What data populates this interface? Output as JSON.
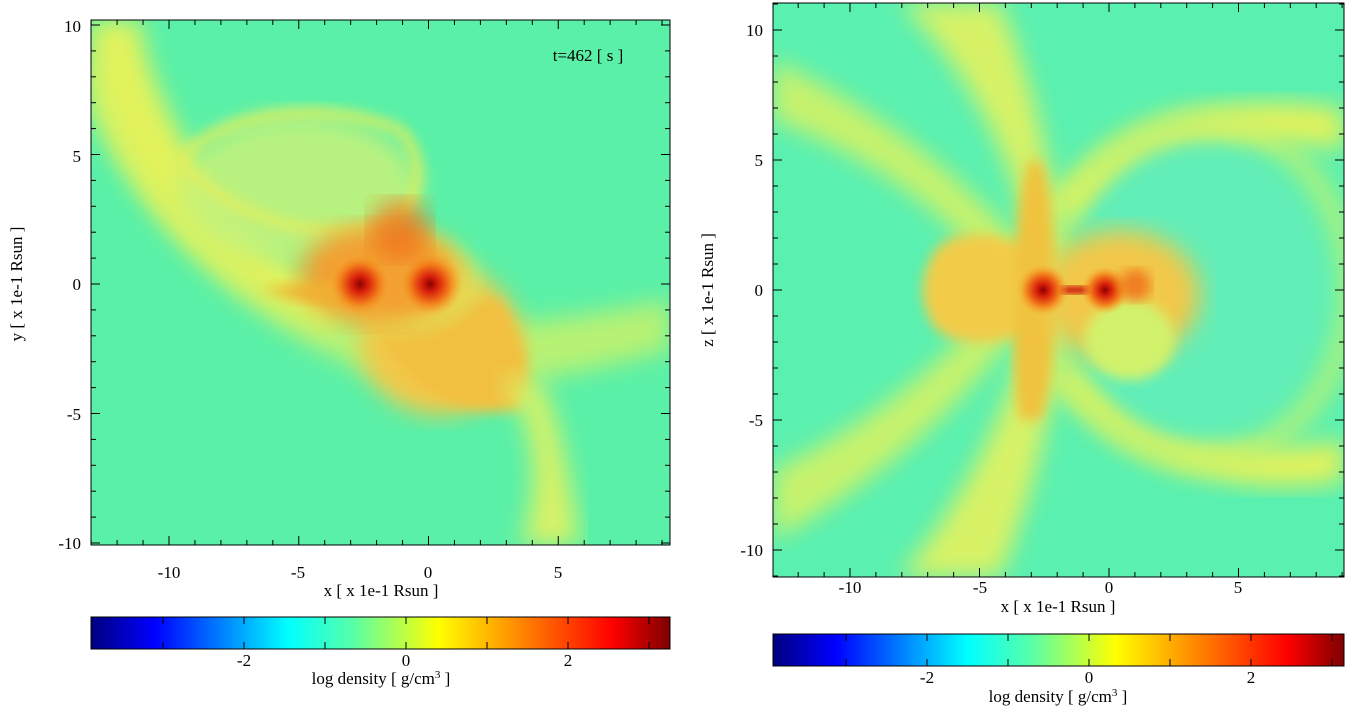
{
  "figure": {
    "left_panel": {
      "timestamp": "t=462 [ s ]",
      "xlabel": "x [ x 1e-1 Rsun ]",
      "ylabel": "y [ x 1e-1 Rsun ]",
      "x_ticks": [
        "-10",
        "-5",
        "0",
        "5"
      ],
      "y_ticks": [
        "10",
        "5",
        "0",
        "-5",
        "-10"
      ],
      "colorbar": {
        "label": "log density [ g/cm",
        "label_sup": "3",
        "label_tail": " ]",
        "ticks": [
          "-2",
          "0",
          "2"
        ]
      }
    },
    "right_panel": {
      "xlabel": "x [ x 1e-1 Rsun ]",
      "ylabel": "z [ x 1e-1 Rsun ]",
      "x_ticks": [
        "-10",
        "-5",
        "0",
        "5"
      ],
      "y_ticks": [
        "10",
        "5",
        "0",
        "-5",
        "-10"
      ],
      "colorbar": {
        "label": "log density [ g/cm",
        "label_sup": "3",
        "label_tail": " ]",
        "ticks": [
          "-2",
          "0",
          "2"
        ]
      }
    },
    "colors": {
      "background_field": "#52f5a8",
      "outflow": "#e8f25a",
      "dense_core": "#d42a10"
    }
  }
}
